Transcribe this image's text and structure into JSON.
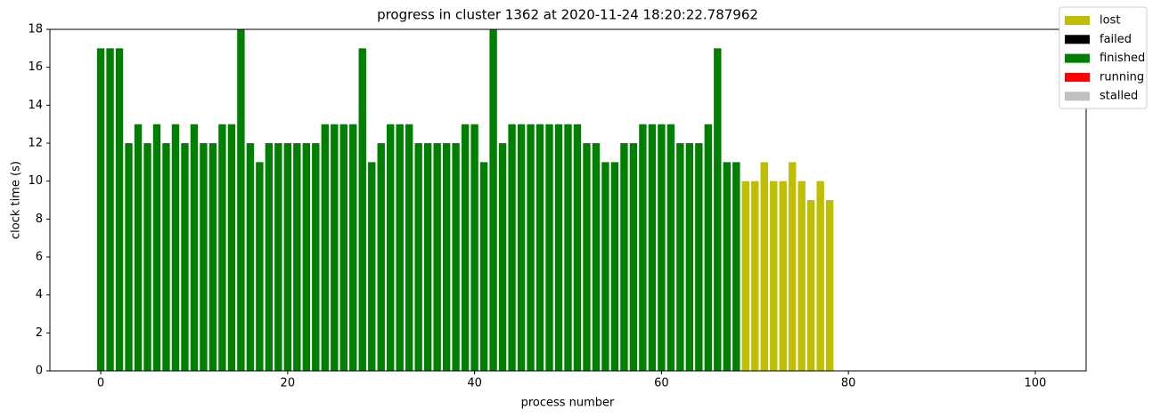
{
  "chart_data": {
    "type": "bar",
    "title": "progress in cluster 1362 at 2020-11-24 18:20:22.787962",
    "x_label": "process number",
    "y_label": "clock time (s)",
    "x": [
      0,
      1,
      2,
      3,
      4,
      5,
      6,
      7,
      8,
      9,
      10,
      11,
      12,
      13,
      14,
      15,
      16,
      17,
      18,
      19,
      20,
      21,
      22,
      23,
      24,
      25,
      26,
      27,
      28,
      29,
      30,
      31,
      32,
      33,
      34,
      35,
      36,
      37,
      38,
      39,
      40,
      41,
      42,
      43,
      44,
      45,
      46,
      47,
      48,
      49,
      50,
      51,
      52,
      53,
      54,
      55,
      56,
      57,
      58,
      59,
      60,
      61,
      62,
      63,
      64,
      65,
      66,
      67,
      68,
      69,
      70,
      71,
      72,
      73,
      74,
      75,
      76,
      77,
      78
    ],
    "series": [
      {
        "name": "lost",
        "color": "#bfbf00",
        "values": [
          null,
          null,
          null,
          null,
          null,
          null,
          null,
          null,
          null,
          null,
          null,
          null,
          null,
          null,
          null,
          null,
          null,
          null,
          null,
          null,
          null,
          null,
          null,
          null,
          null,
          null,
          null,
          null,
          null,
          null,
          null,
          null,
          null,
          null,
          null,
          null,
          null,
          null,
          null,
          null,
          null,
          null,
          null,
          null,
          null,
          null,
          null,
          null,
          null,
          null,
          null,
          null,
          null,
          null,
          null,
          null,
          null,
          null,
          null,
          null,
          null,
          null,
          null,
          null,
          null,
          null,
          null,
          null,
          null,
          10,
          10,
          11,
          10,
          10,
          11,
          10,
          9,
          10,
          9
        ]
      },
      {
        "name": "failed",
        "color": "#000000",
        "values": [
          null,
          null,
          null,
          null,
          null,
          null,
          null,
          null,
          null,
          null,
          null,
          null,
          null,
          null,
          null,
          null,
          null,
          null,
          null,
          null,
          null,
          null,
          null,
          null,
          null,
          null,
          null,
          null,
          null,
          null,
          null,
          null,
          null,
          null,
          null,
          null,
          null,
          null,
          null,
          null,
          null,
          null,
          null,
          null,
          null,
          null,
          null,
          null,
          null,
          null,
          null,
          null,
          null,
          null,
          null,
          null,
          null,
          null,
          null,
          null,
          null,
          null,
          null,
          null,
          null,
          null,
          null,
          null,
          null,
          null,
          null,
          null,
          null,
          null,
          null,
          null,
          null,
          null,
          null
        ]
      },
      {
        "name": "finished",
        "color": "#008000",
        "values": [
          17,
          17,
          17,
          12,
          13,
          12,
          13,
          12,
          13,
          12,
          13,
          12,
          12,
          13,
          13,
          18,
          12,
          11,
          12,
          12,
          12,
          12,
          12,
          12,
          13,
          13,
          13,
          13,
          17,
          11,
          12,
          13,
          13,
          13,
          12,
          12,
          12,
          12,
          12,
          13,
          13,
          11,
          18,
          12,
          13,
          13,
          13,
          13,
          13,
          13,
          13,
          13,
          12,
          12,
          11,
          11,
          12,
          12,
          13,
          13,
          13,
          13,
          12,
          12,
          12,
          13,
          17,
          11,
          11,
          null,
          null,
          null,
          null,
          null,
          null,
          null,
          null,
          null,
          null
        ]
      },
      {
        "name": "running",
        "color": "#ff0000",
        "values": [
          null,
          null,
          null,
          null,
          null,
          null,
          null,
          null,
          null,
          null,
          null,
          null,
          null,
          null,
          null,
          null,
          null,
          null,
          null,
          null,
          null,
          null,
          null,
          null,
          null,
          null,
          null,
          null,
          null,
          null,
          null,
          null,
          null,
          null,
          null,
          null,
          null,
          null,
          null,
          null,
          null,
          null,
          null,
          null,
          null,
          null,
          null,
          null,
          null,
          null,
          null,
          null,
          null,
          null,
          null,
          null,
          null,
          null,
          null,
          null,
          null,
          null,
          null,
          null,
          null,
          null,
          null,
          null,
          null,
          null,
          null,
          null,
          null,
          null,
          null,
          null,
          null,
          null,
          null
        ]
      },
      {
        "name": "stalled",
        "color": "#c0c0c0",
        "values": [
          null,
          null,
          null,
          null,
          null,
          null,
          null,
          null,
          null,
          null,
          null,
          null,
          null,
          null,
          null,
          null,
          null,
          null,
          null,
          null,
          null,
          null,
          null,
          null,
          null,
          null,
          null,
          null,
          null,
          null,
          null,
          null,
          null,
          null,
          null,
          null,
          null,
          null,
          null,
          null,
          null,
          null,
          null,
          null,
          null,
          null,
          null,
          null,
          null,
          null,
          null,
          null,
          null,
          null,
          null,
          null,
          null,
          null,
          null,
          null,
          null,
          null,
          null,
          null,
          null,
          null,
          null,
          null,
          null,
          null,
          null,
          null,
          null,
          null,
          null,
          null,
          null,
          null,
          null
        ]
      }
    ],
    "xlim": [
      -5.44,
      105.44
    ],
    "xticks": [
      0,
      20,
      40,
      60,
      80,
      100
    ],
    "ylim": [
      0,
      18
    ],
    "yticks": [
      0,
      2,
      4,
      6,
      8,
      10,
      12,
      14,
      16,
      18
    ],
    "legend": "upper right",
    "grid": false
  }
}
